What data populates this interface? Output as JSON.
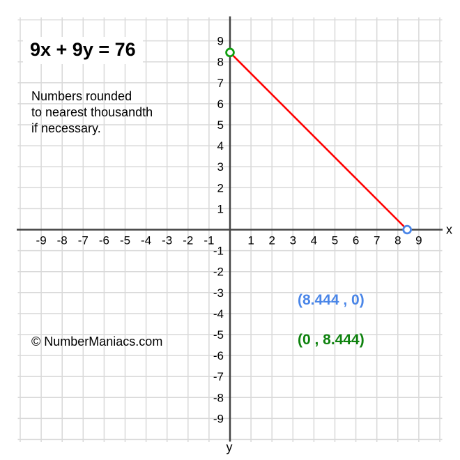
{
  "header": {
    "equation_title": "9x + 9y = 76",
    "note_lines": [
      "Numbers rounded",
      "to nearest thousandth",
      "if necessary."
    ],
    "copyright": "© NumberManiacs.com"
  },
  "point_labels": {
    "x_intercept": "(8.444 , 0)",
    "y_intercept": "(0 , 8.444)"
  },
  "chart_data": {
    "type": "line",
    "title": "9x + 9y = 76",
    "equation": "9x + 9y = 76",
    "xlabel": "x",
    "ylabel": "y",
    "xlim": [
      -10,
      10
    ],
    "ylim": [
      -10,
      10
    ],
    "x_ticks": [
      -9,
      -8,
      -7,
      -6,
      -5,
      -4,
      -3,
      -2,
      -1,
      1,
      2,
      3,
      4,
      5,
      6,
      7,
      8,
      9
    ],
    "y_ticks": [
      9,
      8,
      7,
      6,
      5,
      4,
      3,
      2,
      1,
      -1,
      -2,
      -3,
      -4,
      -5,
      -6,
      -7,
      -8,
      -9
    ],
    "grid": true,
    "legend": false,
    "series": [
      {
        "name": "9x + 9y = 76",
        "color": "#ff0000",
        "points": [
          [
            0,
            8.444
          ],
          [
            8.444,
            0
          ]
        ]
      }
    ],
    "intercepts": [
      {
        "id": "x-intercept",
        "x": 8.444,
        "y": 0,
        "label": "(8.444 , 0)",
        "marker_color": "#4a86e8",
        "label_color": "#4a86e8"
      },
      {
        "id": "y-intercept",
        "x": 0,
        "y": 8.444,
        "label": "(0 , 8.444)",
        "marker_color": "#0f9e0f",
        "label_color": "#0e820e"
      }
    ],
    "colors": {
      "background": "#ffffff",
      "grid": "#d9d9d9",
      "axis": "#434343",
      "tick_text": "#000000"
    }
  }
}
